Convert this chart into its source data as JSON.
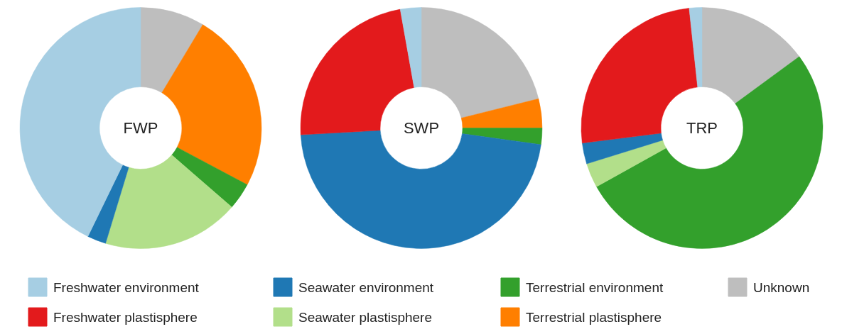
{
  "chart_data": [
    {
      "type": "donut",
      "title": "FWP",
      "legend": "bottom",
      "categories": [
        "Unknown",
        "Terrestrial plastisphere",
        "Terrestrial environment",
        "Seawater plastisphere",
        "Seawater environment",
        "Freshwater plastisphere",
        "Freshwater environment"
      ],
      "values": [
        8.6,
        24.2,
        3.6,
        18.3,
        2.5,
        0,
        42.8
      ],
      "colors": [
        "#bebebe",
        "#ff7f00",
        "#33a02c",
        "#b2df8a",
        "#1f78b4",
        "#e31a1c",
        "#a6cee3"
      ]
    },
    {
      "type": "donut",
      "title": "SWP",
      "categories": [
        null,
        null,
        null,
        null,
        null,
        null,
        null
      ],
      "values": [
        21.1,
        3.9,
        2.2,
        0,
        46.9,
        23.1,
        2.8
      ],
      "colors": [
        "#bebebe",
        "#ff7f00",
        "#33a02c",
        "#b2df8a",
        "#1f78b4",
        "#e31a1c",
        "#a6cee3"
      ]
    },
    {
      "type": "donut",
      "title": "TRP",
      "categories": [
        null,
        null,
        null,
        null,
        null,
        null,
        null
      ],
      "values": [
        14.9,
        0,
        52.0,
        3.3,
        2.8,
        25.3,
        1.7
      ],
      "colors": [
        "#bebebe",
        "#ff7f00",
        "#33a02c",
        "#b2df8a",
        "#1f78b4",
        "#e31a1c",
        "#a6cee3"
      ]
    }
  ]
}
